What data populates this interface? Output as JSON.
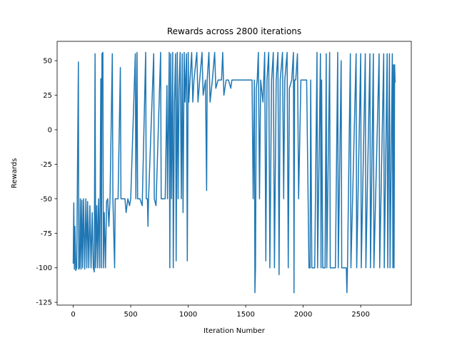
{
  "chart_data": {
    "type": "line",
    "title": "Rewards across 2800 iterations",
    "x_label": "Iteration Number",
    "y_label": "Rewards",
    "xlim": [
      -140,
      2940
    ],
    "ylim": [
      -127,
      64
    ],
    "xticks": [
      0,
      500,
      1000,
      1500,
      2000,
      2500
    ],
    "yticks": [
      -125,
      -100,
      -75,
      -50,
      -25,
      0,
      25,
      50
    ],
    "grid": false,
    "series": [
      {
        "color": "#1f77b4",
        "x": [
          0,
          5,
          10,
          15,
          22,
          30,
          45,
          48,
          55,
          62,
          68,
          75,
          82,
          90,
          100,
          110,
          118,
          125,
          135,
          145,
          155,
          165,
          175,
          183,
          190,
          195,
          205,
          212,
          220,
          230,
          240,
          245,
          250,
          258,
          262,
          270,
          280,
          290,
          300,
          310,
          320,
          340,
          345,
          360,
          365,
          390,
          410,
          415,
          450,
          460,
          475,
          490,
          500,
          540,
          545,
          555,
          560,
          580,
          600,
          630,
          635,
          645,
          650,
          655,
          700,
          705,
          720,
          760,
          765,
          800,
          815,
          820,
          835,
          840,
          848,
          855,
          865,
          870,
          880,
          890,
          895,
          905,
          912,
          920,
          930,
          940,
          948,
          955,
          965,
          972,
          985,
          992,
          1000,
          1005,
          1015,
          1030,
          1040,
          1050,
          1075,
          1085,
          1100,
          1120,
          1130,
          1150,
          1160,
          1165,
          1180,
          1190,
          1210,
          1230,
          1240,
          1260,
          1290,
          1300,
          1310,
          1330,
          1350,
          1370,
          1380,
          1420,
          1500,
          1540,
          1555,
          1565,
          1575,
          1580,
          1585,
          1592,
          1600,
          1610,
          1620,
          1630,
          1650,
          1665,
          1675,
          1685,
          1700,
          1710,
          1725,
          1740,
          1750,
          1765,
          1780,
          1790,
          1800,
          1820,
          1830,
          1840,
          1860,
          1870,
          1880,
          1900,
          1915,
          1920,
          1925,
          1935,
          1950,
          1960,
          1980,
          2000,
          2030,
          2050,
          2060,
          2065,
          2075,
          2100,
          2120,
          2125,
          2150,
          2155,
          2160,
          2170,
          2190,
          2200,
          2205,
          2230,
          2235,
          2280,
          2300,
          2305,
          2330,
          2335,
          2375,
          2380,
          2385,
          2410,
          2415,
          2460,
          2465,
          2500,
          2505,
          2540,
          2545,
          2580,
          2585,
          2610,
          2615,
          2660,
          2665,
          2700,
          2705,
          2730,
          2735,
          2750,
          2755,
          2775,
          2780,
          2785,
          2790,
          2795,
          2799
        ],
        "values": [
          -97,
          -53,
          -101,
          -70,
          -102,
          -100,
          49,
          -101,
          -100,
          -50,
          -101,
          -51,
          -100,
          -50,
          -101,
          -50,
          -100,
          -52,
          -100,
          -55,
          -100,
          -60,
          -100,
          -103,
          55,
          -100,
          -55,
          -100,
          -50,
          -100,
          37,
          -100,
          55,
          56,
          -100,
          -60,
          -100,
          -52,
          -50,
          -70,
          -50,
          55,
          -50,
          -100,
          -50,
          -50,
          45,
          -50,
          -50,
          -60,
          -50,
          -55,
          -50,
          55,
          -50,
          56,
          -50,
          -50,
          -55,
          56,
          -50,
          -50,
          -70,
          -50,
          55,
          -50,
          -55,
          56,
          -50,
          -50,
          32,
          -50,
          56,
          -100,
          55,
          -50,
          56,
          -100,
          20,
          55,
          -95,
          56,
          -50,
          30,
          56,
          -50,
          55,
          -60,
          56,
          20,
          55,
          -95,
          56,
          20,
          35,
          56,
          20,
          36,
          56,
          20,
          36,
          56,
          25,
          36,
          -44,
          36,
          56,
          20,
          36,
          56,
          30,
          36,
          36,
          56,
          25,
          36,
          36,
          30,
          36,
          36,
          36,
          36,
          36,
          -50,
          36,
          -118,
          -100,
          30,
          36,
          56,
          -50,
          36,
          20,
          56,
          -95,
          36,
          56,
          -100,
          36,
          56,
          -100,
          36,
          56,
          -105,
          36,
          56,
          -50,
          36,
          56,
          -100,
          30,
          36,
          56,
          -118,
          36,
          36,
          55,
          -50,
          36,
          36,
          36,
          -100,
          -100,
          36,
          -100,
          -100,
          56,
          -100,
          55,
          -100,
          36,
          -100,
          -100,
          55,
          -100,
          56,
          -100,
          -100,
          56,
          -100,
          50,
          -100,
          -100,
          -118,
          -100,
          55,
          -100,
          55,
          -100,
          55,
          -100,
          55,
          -100,
          55,
          -100,
          55,
          -100,
          55,
          -100,
          55,
          -100,
          55,
          -100,
          55,
          -100,
          55,
          -100,
          47,
          -100,
          47,
          34
        ]
      }
    ]
  }
}
